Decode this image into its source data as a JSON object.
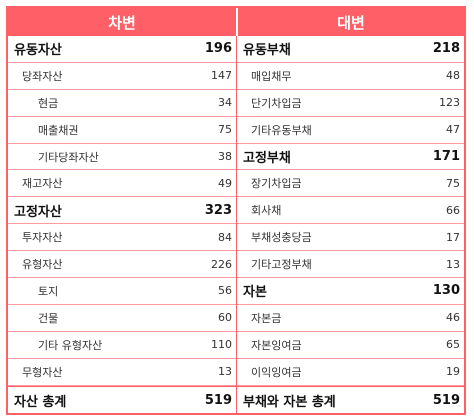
{
  "header": {
    "debit": "차변",
    "credit": "대변"
  },
  "left_rows": [
    {
      "level": 0,
      "label": "유동자산",
      "value": "196"
    },
    {
      "level": 1,
      "label": "당좌자산",
      "value": "147"
    },
    {
      "level": 2,
      "label": "현금",
      "value": "34"
    },
    {
      "level": 2,
      "label": "매출채권",
      "value": "75"
    },
    {
      "level": 2,
      "label": "기타당좌자산",
      "value": "38"
    },
    {
      "level": 1,
      "label": "재고자산",
      "value": "49"
    },
    {
      "level": 0,
      "label": "고정자산",
      "value": "323"
    },
    {
      "level": 1,
      "label": "투자자산",
      "value": "84"
    },
    {
      "level": 1,
      "label": "유형자산",
      "value": "226"
    },
    {
      "level": 2,
      "label": "토지",
      "value": "56"
    },
    {
      "level": 2,
      "label": "건물",
      "value": "60"
    },
    {
      "level": 2,
      "label": "기타 유형자산",
      "value": "110"
    },
    {
      "level": 1,
      "label": "무형자산",
      "value": "13"
    },
    {
      "level": 0,
      "label": "자산 총계",
      "value": "519"
    }
  ],
  "right_rows": [
    {
      "level": 0,
      "label": "유동부채",
      "value": "218"
    },
    {
      "level": 1,
      "label": "매입채무",
      "value": "48"
    },
    {
      "level": 1,
      "label": "단기차입금",
      "value": "123"
    },
    {
      "level": 1,
      "label": "기타유동부채",
      "value": "47"
    },
    {
      "level": 0,
      "label": "고정부채",
      "value": "171"
    },
    {
      "level": 1,
      "label": "장기차입금",
      "value": "75"
    },
    {
      "level": 1,
      "label": "회사채",
      "value": "66"
    },
    {
      "level": 1,
      "label": "부채성충당금",
      "value": "17"
    },
    {
      "level": 1,
      "label": "기타고정부채",
      "value": "13"
    },
    {
      "level": 0,
      "label": "자본",
      "value": "130"
    },
    {
      "level": 1,
      "label": "자본금",
      "value": "46"
    },
    {
      "level": 1,
      "label": "자본잉여금",
      "value": "65"
    },
    {
      "level": 1,
      "label": "이익잉여금",
      "value": "19"
    },
    {
      "level": 0,
      "label": "부채와 자본 총계",
      "value": "519"
    }
  ],
  "colors": {
    "accent": "#ff5f66",
    "row_border": "#ff9aa0"
  }
}
